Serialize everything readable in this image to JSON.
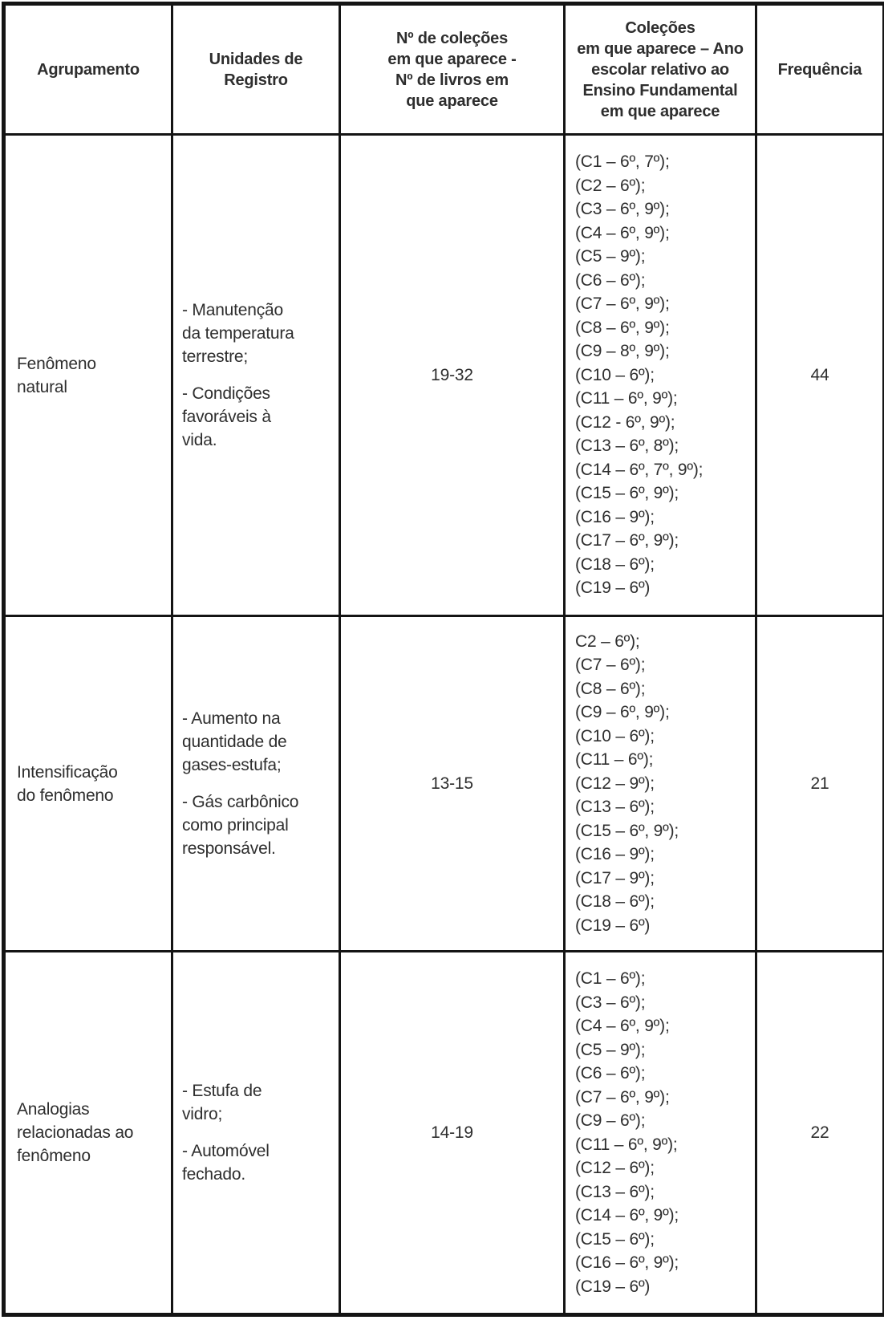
{
  "colors": {
    "text": "#2e2e2e",
    "border": "#141414",
    "background": "#ffffff"
  },
  "table": {
    "headers": [
      {
        "id": "agrupamento",
        "lines": [
          "Agrupamento"
        ]
      },
      {
        "id": "unidades",
        "lines": [
          "Unidades de",
          "Registro"
        ]
      },
      {
        "id": "n_colecoes",
        "lines": [
          "Nº de coleções",
          "em que aparece -",
          "Nº de livros em",
          "que aparece"
        ]
      },
      {
        "id": "colecoes_ano",
        "lines": [
          "Coleções",
          "em que aparece – Ano",
          "escolar relativo ao",
          "Ensino Fundamental",
          "em que aparece"
        ]
      },
      {
        "id": "frequencia",
        "lines": [
          "Frequência"
        ]
      }
    ],
    "rows": [
      {
        "agrupamento": "Fenômeno\nnatural",
        "unidades": [
          "- Manutenção\nda temperatura\nterrestre;",
          "- Condições\nfavoráveis à\nvida."
        ],
        "n_colecoes": "19-32",
        "colecoes": [
          "(C1 – 6º, 7º);",
          "(C2 – 6º);",
          "(C3 – 6º, 9º);",
          "(C4 – 6º, 9º);",
          "(C5 – 9º);",
          "(C6 – 6º);",
          "(C7 – 6º, 9º);",
          "(C8 – 6º, 9º);",
          "(C9 – 8º, 9º);",
          "(C10 – 6º);",
          "(C11 – 6º, 9º);",
          "(C12 - 6º, 9º);",
          "(C13 – 6º, 8º);",
          "(C14 – 6º, 7º, 9º);",
          "(C15 – 6º, 9º);",
          "(C16 – 9º);",
          "(C17 – 6º, 9º);",
          "(C18 – 6º);",
          "(C19 – 6º)"
        ],
        "frequencia": "44"
      },
      {
        "agrupamento": "Intensificação\ndo fenômeno",
        "unidades": [
          "- Aumento na\nquantidade de\ngases-estufa;",
          "- Gás carbônico\ncomo principal\nresponsável."
        ],
        "n_colecoes": "13-15",
        "colecoes": [
          "C2 – 6º);",
          "(C7 – 6º);",
          "(C8 – 6º);",
          "(C9 – 6º, 9º);",
          "(C10 – 6º);",
          "(C11 – 6º);",
          "(C12 – 9º);",
          "(C13 – 6º);",
          "(C15 – 6º, 9º);",
          "(C16 – 9º);",
          "(C17 – 9º);",
          "(C18 – 6º);",
          "(C19 – 6º)"
        ],
        "frequencia": "21"
      },
      {
        "agrupamento": "Analogias\nrelacionadas ao\nfenômeno",
        "unidades": [
          "- Estufa de\nvidro;",
          "- Automóvel\nfechado."
        ],
        "n_colecoes": "14-19",
        "colecoes": [
          "(C1 – 6º);",
          "(C3 – 6º);",
          "(C4 – 6º, 9º);",
          "(C5 – 9º);",
          "(C6 – 6º);",
          "(C7 – 6º, 9º);",
          "(C9 – 6º);",
          "(C11 – 6º, 9º);",
          "(C12 – 6º);",
          "(C13 – 6º);",
          "(C14 – 6º, 9º);",
          "(C15 – 6º);",
          "(C16 – 6º, 9º);",
          "(C19 – 6º)"
        ],
        "frequencia": "22"
      }
    ]
  }
}
